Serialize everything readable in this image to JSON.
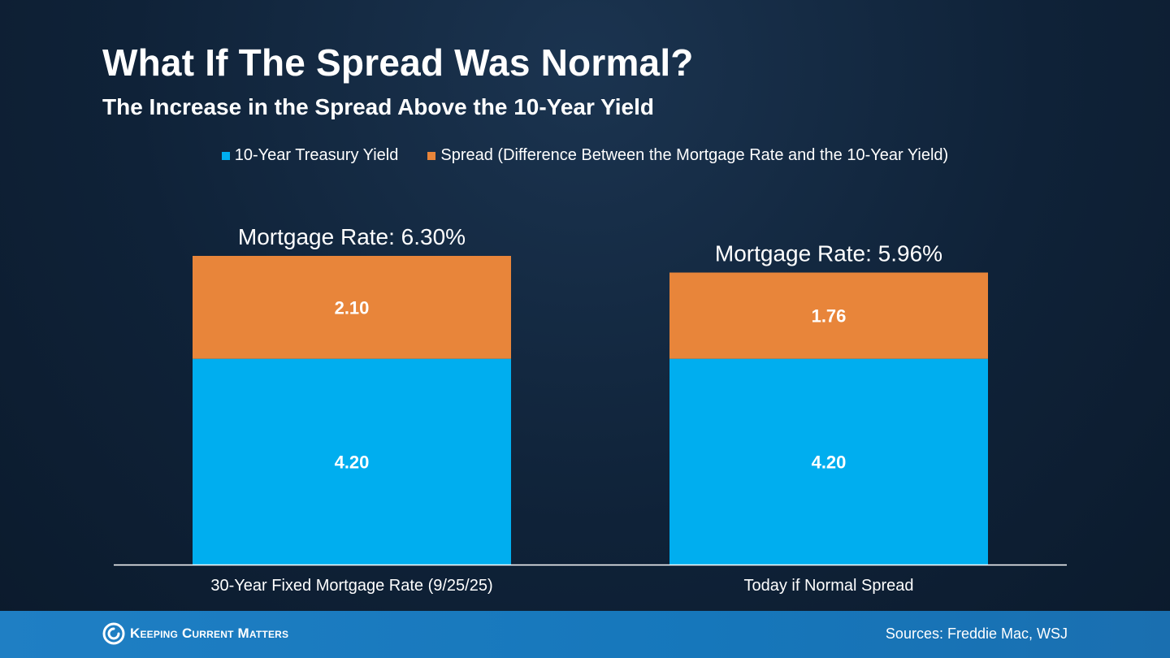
{
  "title": "What If The Spread Was Normal?",
  "subtitle": "The Increase in the Spread Above the 10-Year Yield",
  "colors": {
    "treasury": "#00aeef",
    "spread": "#e8853a",
    "background": "#0f2238",
    "footer": "#1677bb"
  },
  "footer": {
    "logo_text": "Keeping Current Matters",
    "logo_icon": "swirl-icon",
    "sources": "Sources: Freddie Mac, WSJ"
  },
  "chart_data": {
    "type": "bar",
    "stacked": true,
    "title": "What If The Spread Was Normal?",
    "categories": [
      "30-Year Fixed Mortgage Rate (9/25/25)",
      "Today if Normal Spread"
    ],
    "series": [
      {
        "name": "10-Year Treasury Yield",
        "values": [
          4.2,
          4.2
        ],
        "labels": [
          "4.20",
          "4.20"
        ]
      },
      {
        "name": "Spread (Difference Between the Mortgage Rate and the 10-Year Yield)",
        "values": [
          2.1,
          1.76
        ],
        "labels": [
          "2.10",
          "1.76"
        ]
      }
    ],
    "totals": [
      6.3,
      5.96
    ],
    "total_labels": [
      "Mortgage Rate: 6.30%",
      "Mortgage Rate: 5.96%"
    ],
    "ylim": [
      0,
      6.3
    ],
    "xlabel": "",
    "ylabel": "",
    "grid": false,
    "legend": "top-center"
  }
}
